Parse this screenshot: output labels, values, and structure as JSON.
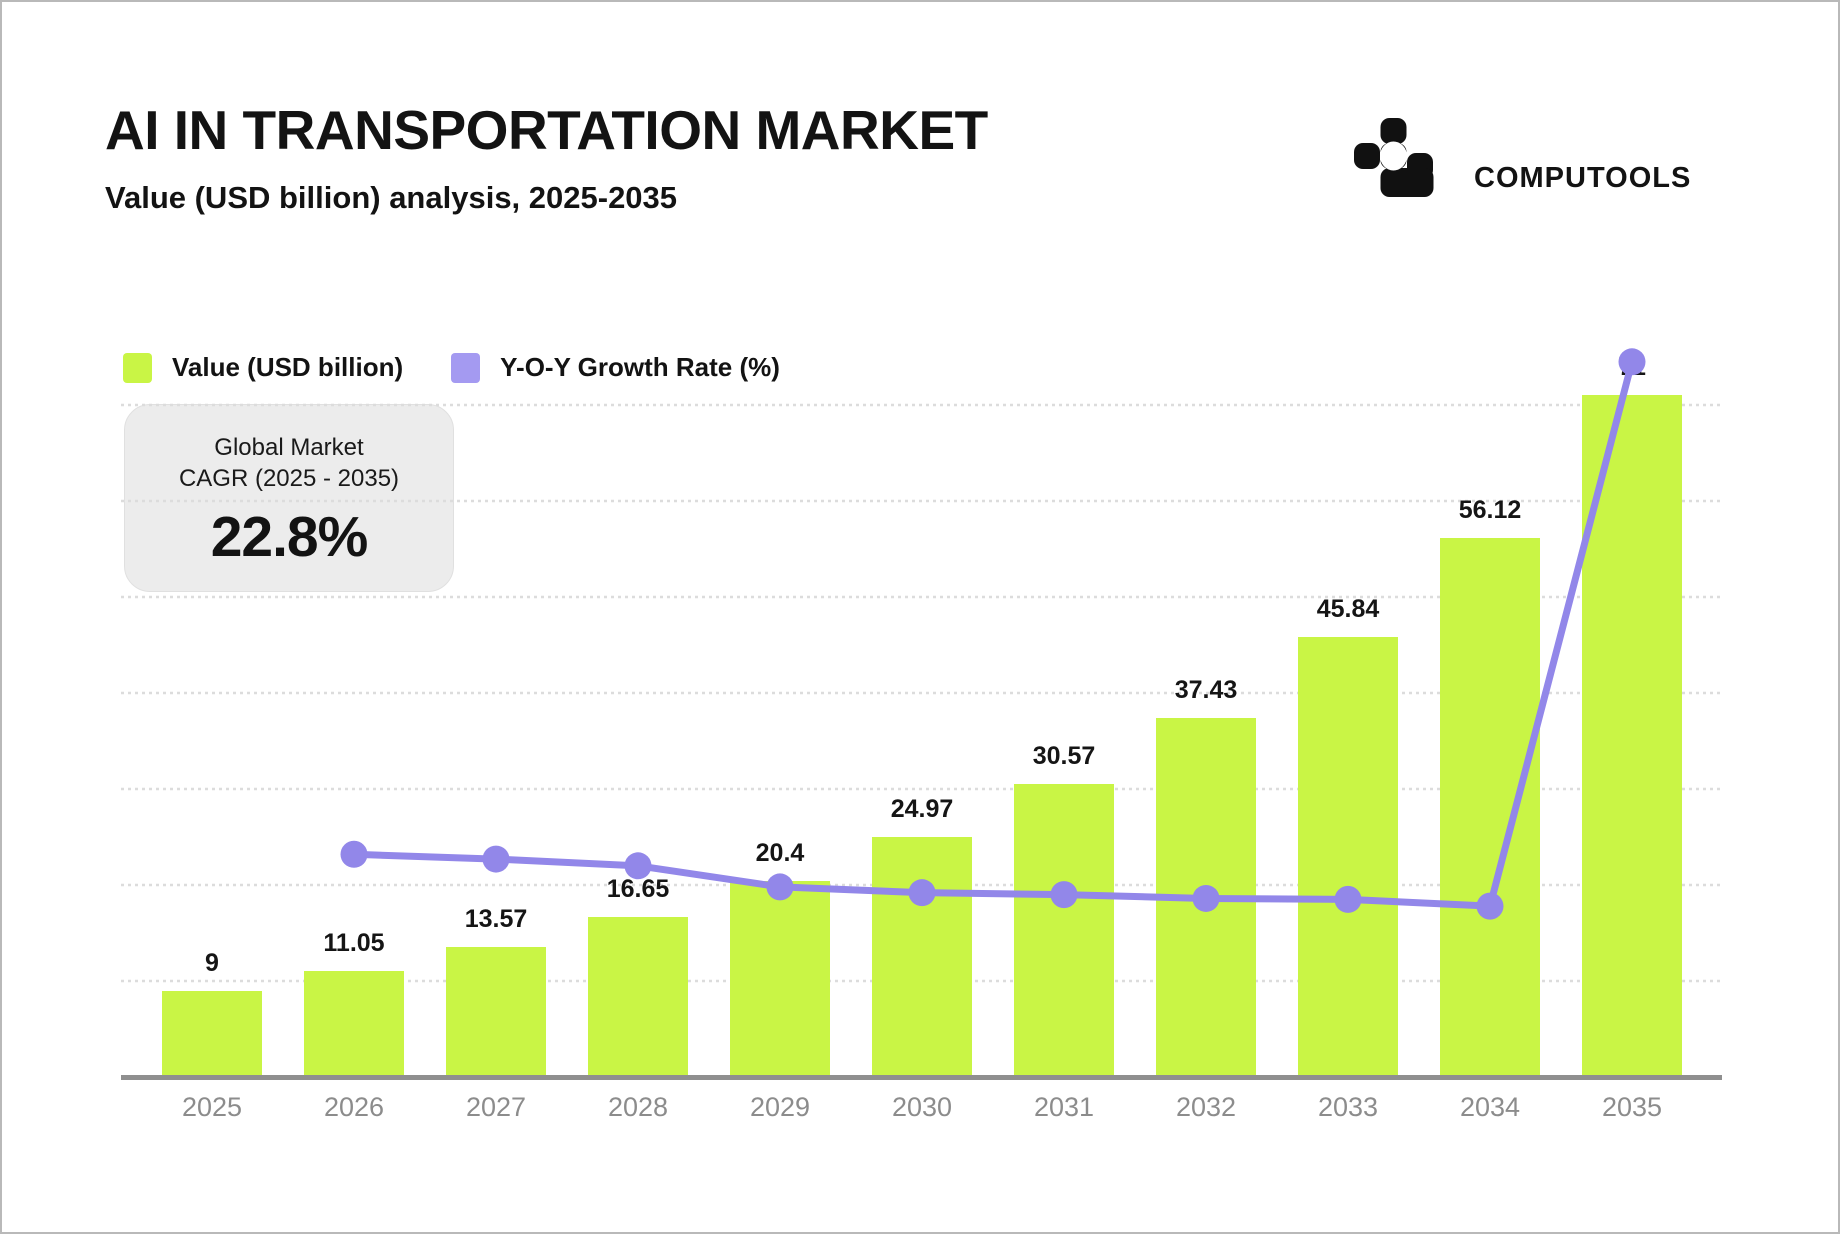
{
  "header": {
    "title": "AI IN TRANSPORTATION MARKET",
    "subtitle": "Value (USD billion) analysis, 2025-2035"
  },
  "brand": {
    "name": "COMPUTOOLS",
    "logo_icon": "pixel-cluster-logo"
  },
  "legend": {
    "items": [
      {
        "label": "Value (USD billion)",
        "swatch_color": "#c9f545"
      },
      {
        "label": "Y-O-Y Growth Rate (%)",
        "swatch_color": "#a49af1"
      }
    ]
  },
  "cagr_card": {
    "title_line1": "Global Market",
    "title_line2": "CAGR (2025 - 2035)",
    "value": "22.8%",
    "background": "#ececec"
  },
  "chart_data": {
    "type": "combo-bar-line",
    "title": "AI IN TRANSPORTATION MARKET",
    "xlabel": "",
    "ylabel": "",
    "categories": [
      "2025",
      "2026",
      "2027",
      "2028",
      "2029",
      "2030",
      "2031",
      "2032",
      "2033",
      "2034",
      "2035"
    ],
    "series": [
      {
        "name": "Value (USD billion)",
        "type": "bar",
        "color": "#c9f545",
        "values": [
          9,
          11.05,
          13.57,
          16.65,
          20.4,
          24.97,
          30.57,
          37.43,
          45.84,
          56.12,
          71
        ],
        "data_labels": [
          "9",
          "11.05",
          "13.57",
          "16.65",
          "20.4",
          "24.97",
          "30.57",
          "37.43",
          "45.84",
          "56.12",
          "71"
        ]
      },
      {
        "name": "Y-O-Y Growth Rate (%)",
        "type": "line",
        "color": "#9287e9",
        "starts_at_category": "2026",
        "plotted_values_left_axis_est": [
          23.2,
          22.7,
          22.0,
          19.8,
          19.2,
          19.0,
          18.6,
          18.5,
          17.8,
          74.5
        ]
      }
    ],
    "ylim": [
      0,
      80
    ],
    "gridlines": {
      "step": 10,
      "count": 7,
      "style": "dotted",
      "color": "#dcdcdc"
    },
    "axis": {
      "line_color": "#8f8f8f",
      "tick_label_color": "#8c8c8c"
    },
    "legend_position": "top-left",
    "y_axis_ticks_visible": false
  }
}
